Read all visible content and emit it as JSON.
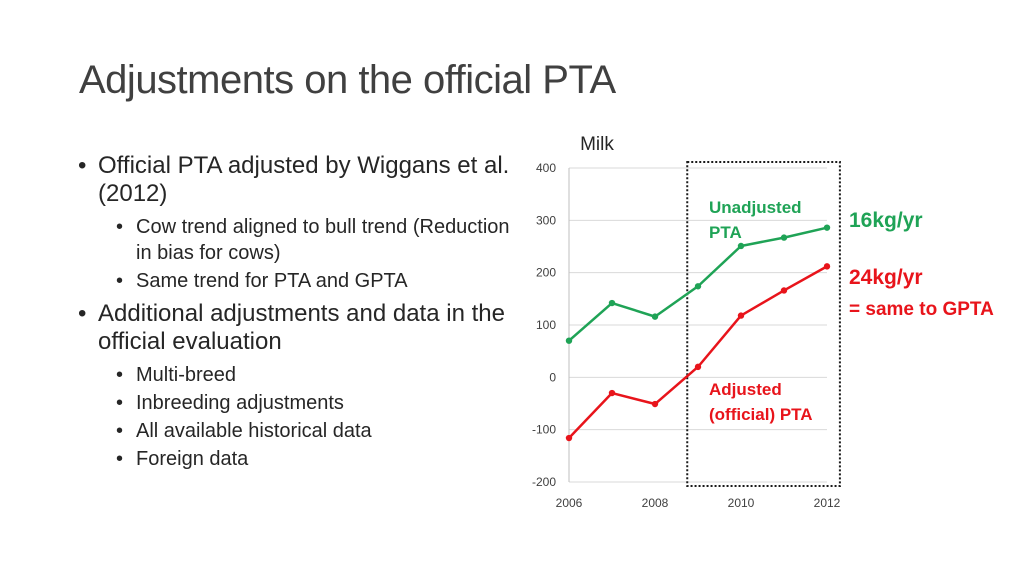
{
  "slide": {
    "title": "Adjustments on the official PTA",
    "bullets": [
      {
        "text": "Official PTA adjusted by Wiggans et al. (2012)",
        "sub": [
          "Cow trend aligned to bull trend (Reduction in bias for cows)",
          "Same trend for PTA and GPTA"
        ]
      },
      {
        "text": "Additional adjustments and data in the official evaluation",
        "sub": [
          "Multi-breed",
          "Inbreeding adjustments",
          "All available historical data",
          "Foreign data"
        ]
      }
    ]
  },
  "chart_data": {
    "type": "line",
    "title": "Milk",
    "xlim": [
      2006,
      2012
    ],
    "ylim": [
      -200,
      400
    ],
    "xticks": [
      2006,
      2008,
      2010,
      2012
    ],
    "yticks": [
      -200,
      -100,
      0,
      100,
      200,
      300,
      400
    ],
    "grid": "horizontal",
    "x": [
      2006,
      2007,
      2008,
      2009,
      2010,
      2011,
      2012
    ],
    "series": [
      {
        "name": "Unadjusted PTA",
        "values": [
          70,
          142,
          116,
          174,
          251,
          267,
          286
        ],
        "color": "#1fa356"
      },
      {
        "name": "Adjusted (official) PTA",
        "values": [
          -116,
          -30,
          -51,
          20,
          118,
          166,
          212
        ],
        "color": "#e8141b"
      }
    ],
    "highlight_box": {
      "x_start": 2008.75,
      "x_end": 2012.3
    },
    "annotations": [
      {
        "text": "16kg/yr",
        "color": "#1fa356"
      },
      {
        "text": "24kg/yr",
        "color": "#e8141b"
      },
      {
        "text": "= same to GPTA",
        "color": "#e8141b"
      }
    ]
  }
}
